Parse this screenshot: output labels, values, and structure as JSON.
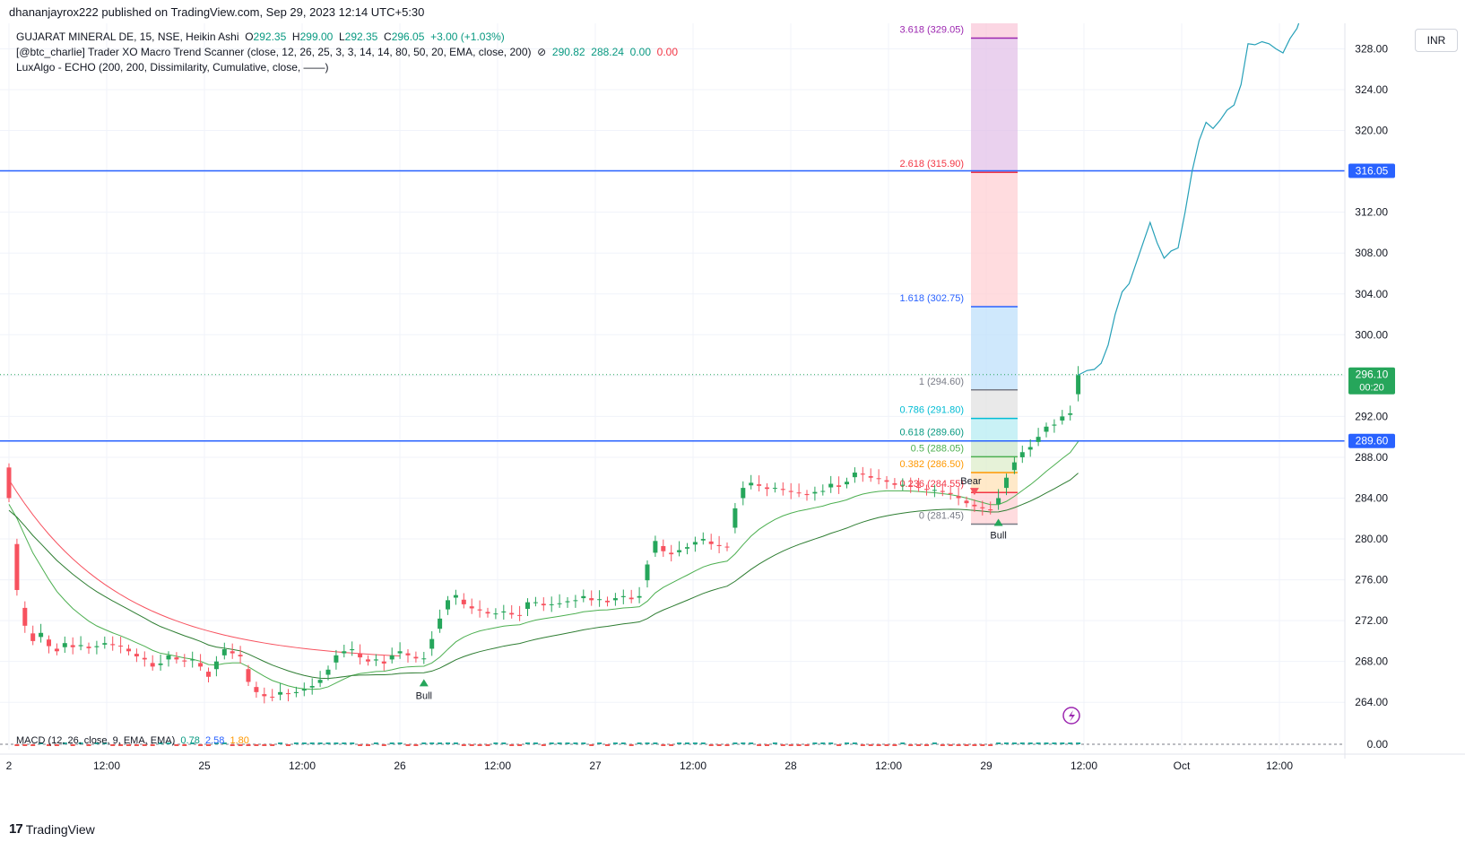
{
  "header": {
    "published": "dhananjayrox222 published on TradingView.com, Sep 29, 2023 12:14 UTC+5:30"
  },
  "legend": {
    "symbol": "GUJARAT MINERAL DE, 15, NSE, Heikin Ashi",
    "o_label": "O",
    "o": "292.35",
    "h_label": "H",
    "h": "299.00",
    "l_label": "L",
    "l": "292.35",
    "c_label": "C",
    "c": "296.05",
    "change": "+3.00 (+1.03%)",
    "ind1": "[@btc_charlie] Trader XO Macro Trend Scanner (close, 12, 26, 25, 3, 3, 14, 14, 80, 50, 20, EMA, close, 200)",
    "ind1_v1": "290.82",
    "ind1_v2": "288.24",
    "ind1_v3": "0.00",
    "ind1_v4": "0.00",
    "ind2": "LuxAlgo - ECHO (200, 200, Dissimilarity, Cumulative, close, ——)",
    "macd": "MACD (12, 26, close, 9, EMA, EMA)",
    "macd_v1": "0.78",
    "macd_v2": "2.58",
    "macd_v3": "1.80"
  },
  "currency": "INR",
  "footer": {
    "brand": "TradingView"
  },
  "colors": {
    "bull": "#26a65b",
    "bear": "#f7525f",
    "blue_line": "#2962ff",
    "echo": "#26a0b8",
    "fib_box": "#ffcdd2"
  },
  "chart_data": {
    "type": "candlestick",
    "x_ticks": [
      "2",
      "12:00",
      "25",
      "12:00",
      "26",
      "12:00",
      "27",
      "12:00",
      "28",
      "12:00",
      "29",
      "12:00",
      "Oct",
      "12:00"
    ],
    "y_ticks": [
      "328.00",
      "324.00",
      "320.00",
      "316.00",
      "312.00",
      "308.00",
      "304.00",
      "300.00",
      "296.00",
      "292.00",
      "288.00",
      "284.00",
      "280.00",
      "276.00",
      "272.00",
      "268.00",
      "264.00"
    ],
    "y_range": [
      262.0,
      330.5
    ],
    "price_labels": [
      {
        "text": "316.05",
        "value": 316.05,
        "color": "#2962ff"
      },
      {
        "text": "296.10",
        "sub": "00:20",
        "value": 296.1,
        "color": "#26a65b"
      },
      {
        "text": "289.60",
        "value": 289.6,
        "color": "#2962ff"
      }
    ],
    "horizontal_lines": [
      316.05,
      289.6
    ],
    "last_price": 296.1,
    "fib_levels": [
      {
        "label": "3.618 (329.05)",
        "value": 329.05,
        "color": "#9c27b0"
      },
      {
        "label": "2.618 (315.90)",
        "value": 315.9,
        "color": "#f23645"
      },
      {
        "label": "1.618 (302.75)",
        "value": 302.75,
        "color": "#2962ff"
      },
      {
        "label": "1 (294.60)",
        "value": 294.6,
        "color": "#787b86"
      },
      {
        "label": "0.786 (291.80)",
        "value": 291.8,
        "color": "#00bcd4"
      },
      {
        "label": "0.618 (289.60)",
        "value": 289.6,
        "color": "#089981"
      },
      {
        "label": "0.5 (288.05)",
        "value": 288.05,
        "color": "#4caf50"
      },
      {
        "label": "0.382 (286.50)",
        "value": 286.5,
        "color": "#ff9800"
      },
      {
        "label": "0.236 (284.55)",
        "value": 284.55,
        "color": "#f23645"
      },
      {
        "label": "0 (281.45)",
        "value": 281.45,
        "color": "#787b86"
      }
    ],
    "signals": [
      {
        "label": "Bull",
        "type": "bull"
      },
      {
        "label": "Bear",
        "type": "bear"
      },
      {
        "label": "Bull",
        "type": "bull"
      }
    ],
    "macd_zero": "0.00",
    "closes": [
      284.0,
      275.0,
      271.5,
      270.0,
      270.8,
      269.5,
      269.0,
      269.8,
      269.4,
      269.6,
      269.3,
      269.5,
      269.8,
      269.6,
      269.5,
      269.0,
      268.5,
      268.2,
      267.5,
      267.8,
      268.6,
      268.2,
      268.0,
      268.2,
      267.5,
      266.5,
      268.0,
      269.2,
      268.8,
      268.5,
      266.0,
      265.0,
      264.6,
      264.5,
      265.0,
      264.8,
      265.0,
      265.3,
      265.6,
      266.2,
      267.2,
      268.6,
      269.0,
      269.2,
      268.4,
      268.0,
      268.2,
      267.8,
      268.6,
      269.0,
      268.6,
      268.3,
      268.3,
      270.2,
      272.2,
      274.0,
      274.5,
      273.6,
      273.2,
      273.0,
      272.7,
      272.7,
      272.9,
      272.6,
      272.5,
      273.8,
      273.8,
      273.5,
      273.6,
      273.7,
      273.9,
      274.0,
      274.4,
      274.0,
      274.1,
      273.8,
      274.2,
      274.4,
      274.1,
      274.4,
      277.5,
      279.8,
      278.8,
      278.5,
      278.9,
      279.2,
      279.7,
      280.0,
      279.5,
      279.3,
      279.2,
      283.0,
      285.0,
      285.5,
      285.2,
      284.9,
      285.0,
      284.8,
      284.6,
      284.5,
      284.3,
      284.6,
      284.7,
      285.4,
      285.1,
      285.6,
      286.5,
      286.3,
      286.0,
      285.9,
      285.6,
      285.3,
      285.3,
      285.2,
      285.0,
      284.8,
      284.8,
      284.6,
      284.4,
      284.0,
      283.5,
      283.2,
      283.0,
      282.8,
      284.0,
      286.0,
      287.5,
      288.5,
      289.0,
      290.0,
      291.0,
      291.2,
      292.0,
      292.3,
      296.05
    ],
    "echo_forecast": [
      296.5,
      296.6,
      297.2,
      299.0,
      302.0,
      304.2,
      305.0,
      307.0,
      309.0,
      311.0,
      309.0,
      307.5,
      308.2,
      308.5,
      312.0,
      316.0,
      319.0,
      320.8,
      320.2,
      321.0,
      322.0,
      322.5,
      324.5,
      328.5,
      328.4,
      328.7,
      328.5,
      328.0,
      327.6,
      329.0,
      330.0,
      332.0
    ]
  }
}
